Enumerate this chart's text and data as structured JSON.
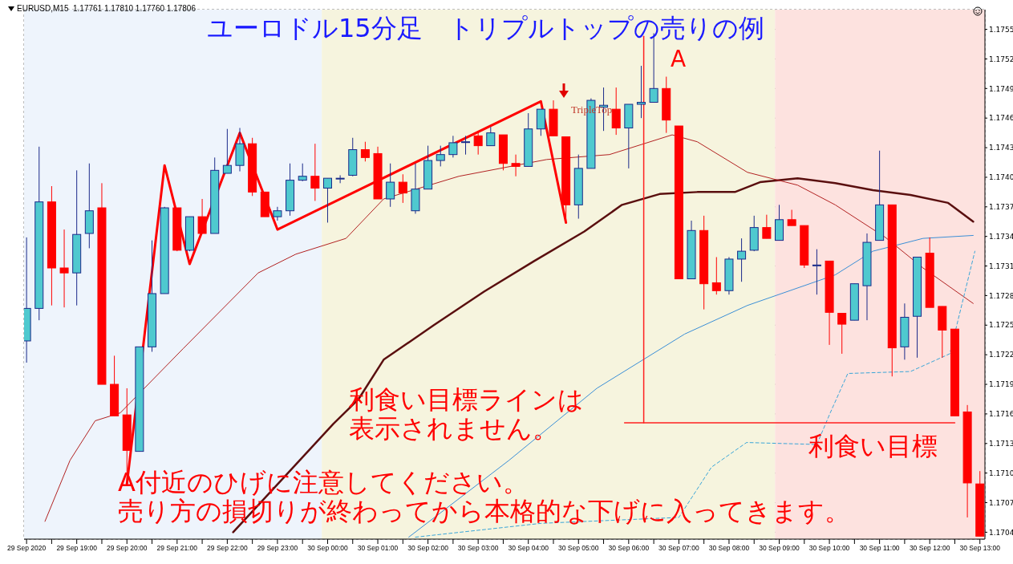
{
  "chart_data": {
    "type": "candlestick",
    "title": "ユーロドル15分足　トリプルトップの売りの例",
    "subtitle": "EURUSD,M15  1.17761 1.17810 1.17760 1.17806",
    "x": [
      "2020-09-29T18:00",
      "2020-09-29T18:15",
      "2020-09-29T18:30",
      "2020-09-29T18:45",
      "2020-09-29T19:00",
      "2020-09-29T19:15",
      "2020-09-29T19:30",
      "2020-09-29T19:45",
      "2020-09-29T20:00",
      "2020-09-29T20:15",
      "2020-09-29T20:30",
      "2020-09-29T20:45",
      "2020-09-29T21:00",
      "2020-09-29T21:15",
      "2020-09-29T21:30",
      "2020-09-29T21:45",
      "2020-09-29T22:00",
      "2020-09-29T22:15",
      "2020-09-29T22:30",
      "2020-09-29T22:45",
      "2020-09-29T23:00",
      "2020-09-29T23:15",
      "2020-09-29T23:30",
      "2020-09-29T23:45",
      "2020-09-30T00:00",
      "2020-09-30T00:15",
      "2020-09-30T00:30",
      "2020-09-30T00:45",
      "2020-09-30T01:00",
      "2020-09-30T01:15",
      "2020-09-30T01:30",
      "2020-09-30T01:45",
      "2020-09-30T02:00",
      "2020-09-30T02:15",
      "2020-09-30T02:30",
      "2020-09-30T02:45",
      "2020-09-30T03:00",
      "2020-09-30T03:15",
      "2020-09-30T03:30",
      "2020-09-30T03:45",
      "2020-09-30T04:00",
      "2020-09-30T04:15",
      "2020-09-30T04:30",
      "2020-09-30T04:45",
      "2020-09-30T05:00",
      "2020-09-30T05:15",
      "2020-09-30T05:30",
      "2020-09-30T05:45",
      "2020-09-30T06:00",
      "2020-09-30T06:15",
      "2020-09-30T06:30",
      "2020-09-30T06:45",
      "2020-09-30T07:00",
      "2020-09-30T07:15",
      "2020-09-30T07:30",
      "2020-09-30T07:45",
      "2020-09-30T08:00",
      "2020-09-30T08:15",
      "2020-09-30T08:30",
      "2020-09-30T08:45",
      "2020-09-30T09:00",
      "2020-09-30T09:15",
      "2020-09-30T09:30",
      "2020-09-30T09:45",
      "2020-09-30T10:00",
      "2020-09-30T10:15",
      "2020-09-30T10:30",
      "2020-09-30T10:45",
      "2020-09-30T11:00",
      "2020-09-30T11:15",
      "2020-09-30T11:30",
      "2020-09-30T11:45",
      "2020-09-30T12:00",
      "2020-09-30T12:15",
      "2020-09-30T12:30",
      "2020-09-30T12:45",
      "2020-09-30T13:00"
    ],
    "ohlc": [
      [
        1.17234,
        1.17339,
        1.17212,
        1.17267
      ],
      [
        1.17267,
        1.17431,
        1.17255,
        1.17375
      ],
      [
        1.17375,
        1.17391,
        1.1727,
        1.17308
      ],
      [
        1.17308,
        1.17347,
        1.17268,
        1.17303
      ],
      [
        1.17303,
        1.17407,
        1.1727,
        1.17342
      ],
      [
        1.17343,
        1.17414,
        1.17328,
        1.17366
      ],
      [
        1.17369,
        1.17394,
        1.1719,
        1.1719
      ],
      [
        1.1719,
        1.17219,
        1.17158,
        1.17158
      ],
      [
        1.17159,
        1.17186,
        1.17089,
        1.17123
      ],
      [
        1.17122,
        1.17228,
        1.17122,
        1.17228
      ],
      [
        1.17228,
        1.17336,
        1.17223,
        1.17282
      ],
      [
        1.17282,
        1.1737,
        1.17282,
        1.17369
      ],
      [
        1.17369,
        1.17369,
        1.17325,
        1.17326
      ],
      [
        1.17326,
        1.1736,
        1.17325,
        1.1736
      ],
      [
        1.1736,
        1.17378,
        1.17343,
        1.17343
      ],
      [
        1.17343,
        1.1742,
        1.17343,
        1.17407
      ],
      [
        1.17404,
        1.17449,
        1.17404,
        1.17412
      ],
      [
        1.17412,
        1.1745,
        1.17406,
        1.17434
      ],
      [
        1.17434,
        1.1744,
        1.17381,
        1.17385
      ],
      [
        1.17385,
        1.17385,
        1.1736,
        1.1736
      ],
      [
        1.1736,
        1.1737,
        1.17356,
        1.17366
      ],
      [
        1.17366,
        1.17414,
        1.17361,
        1.17397
      ],
      [
        1.17397,
        1.17414,
        1.17396,
        1.17401
      ],
      [
        1.17401,
        1.17434,
        1.17376,
        1.17389
      ],
      [
        1.17389,
        1.17399,
        1.17354,
        1.17399
      ],
      [
        1.17399,
        1.17402,
        1.17394,
        1.17399
      ],
      [
        1.17402,
        1.1744,
        1.17401,
        1.17428
      ],
      [
        1.17428,
        1.17436,
        1.17416,
        1.1742
      ],
      [
        1.17424,
        1.17431,
        1.17378,
        1.17378
      ],
      [
        1.17378,
        1.17414,
        1.1737,
        1.17395
      ],
      [
        1.17395,
        1.17403,
        1.17374,
        1.17384
      ],
      [
        1.17366,
        1.17414,
        1.17363,
        1.17388
      ],
      [
        1.17388,
        1.17432,
        1.17388,
        1.17417
      ],
      [
        1.17417,
        1.17432,
        1.17411,
        1.17423
      ],
      [
        1.17423,
        1.17442,
        1.1742,
        1.17435
      ],
      [
        1.17436,
        1.17442,
        1.17423,
        1.17436
      ],
      [
        1.17442,
        1.17447,
        1.17423,
        1.17432
      ],
      [
        1.17432,
        1.17451,
        1.17432,
        1.17445
      ],
      [
        1.17443,
        1.17443,
        1.17407,
        1.17414
      ],
      [
        1.17414,
        1.17423,
        1.17401,
        1.17411
      ],
      [
        1.17411,
        1.17465,
        1.17411,
        1.17449
      ],
      [
        1.17449,
        1.17469,
        1.17442,
        1.17469
      ],
      [
        1.17469,
        1.17478,
        1.17442,
        1.17442
      ],
      [
        1.17441,
        1.17441,
        1.17356,
        1.17372
      ],
      [
        1.17372,
        1.17423,
        1.17358,
        1.17409
      ],
      [
        1.17409,
        1.1748,
        1.17409,
        1.17478
      ],
      [
        1.17471,
        1.17491,
        1.17447,
        1.17473
      ],
      [
        1.17469,
        1.17491,
        1.17443,
        1.1745
      ],
      [
        1.1745,
        1.17474,
        1.17409,
        1.17474
      ],
      [
        1.17474,
        1.17513,
        1.1746,
        1.17476
      ],
      [
        1.17476,
        1.17546,
        1.17476,
        1.1749
      ],
      [
        1.1749,
        1.17502,
        1.17445,
        1.17458
      ],
      [
        1.17452,
        1.17452,
        1.17297,
        1.17297
      ],
      [
        1.17297,
        1.17356,
        1.17297,
        1.17346
      ],
      [
        1.17346,
        1.17361,
        1.17266,
        1.17292
      ],
      [
        1.17293,
        1.17319,
        1.17281,
        1.17285
      ],
      [
        1.17285,
        1.17319,
        1.17281,
        1.17317
      ],
      [
        1.17317,
        1.17338,
        1.17294,
        1.17325
      ],
      [
        1.17326,
        1.17361,
        1.17325,
        1.17349
      ],
      [
        1.17349,
        1.17362,
        1.17338,
        1.17338
      ],
      [
        1.17336,
        1.17372,
        1.17336,
        1.17357
      ],
      [
        1.17357,
        1.17367,
        1.17351,
        1.17351
      ],
      [
        1.17351,
        1.17351,
        1.17308,
        1.17311
      ],
      [
        1.17311,
        1.17327,
        1.17281,
        1.17311
      ],
      [
        1.17315,
        1.17315,
        1.1723,
        1.17263
      ],
      [
        1.17262,
        1.17262,
        1.17221,
        1.17251
      ],
      [
        1.17255,
        1.17292,
        1.17255,
        1.17292
      ],
      [
        1.1729,
        1.17343,
        1.17255,
        1.17334
      ],
      [
        1.17336,
        1.17427,
        1.17336,
        1.17372
      ],
      [
        1.17372,
        1.17372,
        1.17198,
        1.17227
      ],
      [
        1.17228,
        1.17272,
        1.17215,
        1.17258
      ],
      [
        1.17259,
        1.17319,
        1.17217,
        1.17319
      ],
      [
        1.17323,
        1.17339,
        1.17268,
        1.17268
      ],
      [
        1.17269,
        1.17269,
        1.17217,
        1.17245
      ],
      [
        1.17246,
        1.17246,
        1.17158,
        1.17158
      ],
      [
        1.17162,
        1.17169,
        1.17055,
        1.1709
      ],
      [
        1.17089,
        1.17102,
        1.17036,
        1.17036
      ]
    ],
    "colors": [
      "#4fc9cf",
      "#4fc9cf",
      "#ff0000",
      "#ff0000",
      "#4fc9cf",
      "#4fc9cf",
      "#ff0000",
      "#ff0000",
      "#ff0000",
      "#4fc9cf",
      "#4fc9cf",
      "#4fc9cf",
      "#ff0000",
      "#4fc9cf",
      "#ff0000",
      "#4fc9cf",
      "#4fc9cf",
      "#4fc9cf",
      "#ff0000",
      "#ff0000",
      "#4fc9cf",
      "#4fc9cf",
      "#4fc9cf",
      "#ff0000",
      "#4fc9cf",
      "#4fc9cf",
      "#4fc9cf",
      "#ff0000",
      "#ff0000",
      "#4fc9cf",
      "#ff0000",
      "#4fc9cf",
      "#4fc9cf",
      "#4fc9cf",
      "#4fc9cf",
      "#4fc9cf",
      "#ff0000",
      "#4fc9cf",
      "#ff0000",
      "#ff0000",
      "#4fc9cf",
      "#4fc9cf",
      "#ff0000",
      "#ff0000",
      "#4fc9cf",
      "#4fc9cf",
      "#4fc9cf",
      "#ff0000",
      "#4fc9cf",
      "#4fc9cf",
      "#4fc9cf",
      "#ff0000",
      "#ff0000",
      "#4fc9cf",
      "#ff0000",
      "#ff0000",
      "#4fc9cf",
      "#4fc9cf",
      "#4fc9cf",
      "#ff0000",
      "#4fc9cf",
      "#ff0000",
      "#ff0000",
      "#4fc9cf",
      "#ff0000",
      "#ff0000",
      "#4fc9cf",
      "#4fc9cf",
      "#4fc9cf",
      "#ff0000",
      "#4fc9cf",
      "#4fc9cf",
      "#ff0000",
      "#ff0000",
      "#ff0000",
      "#ff0000",
      "#ff0000"
    ],
    "xlim": [
      "2020-09-29T17:57",
      "2020-09-30T13:06"
    ],
    "xticks": [
      {
        "value": "2020-09-29T18:00",
        "label": "29 Sep 2020"
      },
      {
        "value": "2020-09-29T18:30",
        "label": null
      },
      {
        "value": "2020-09-29T19:00",
        "label": "29 Sep 19:00"
      },
      {
        "value": "2020-09-29T19:30",
        "label": null
      },
      {
        "value": "2020-09-29T20:00",
        "label": "29 Sep 20:00"
      },
      {
        "value": "2020-09-29T20:30",
        "label": null
      },
      {
        "value": "2020-09-29T21:00",
        "label": "29 Sep 21:00"
      },
      {
        "value": "2020-09-29T21:30",
        "label": null
      },
      {
        "value": "2020-09-29T22:00",
        "label": "29 Sep 22:00"
      },
      {
        "value": "2020-09-29T22:30",
        "label": null
      },
      {
        "value": "2020-09-29T23:00",
        "label": "29 Sep 23:00"
      },
      {
        "value": "2020-09-29T23:30",
        "label": null
      },
      {
        "value": "2020-09-30T00:00",
        "label": "30 Sep 00:00"
      },
      {
        "value": "2020-09-30T00:30",
        "label": null
      },
      {
        "value": "2020-09-30T01:00",
        "label": "30 Sep 01:00"
      },
      {
        "value": "2020-09-30T01:30",
        "label": null
      },
      {
        "value": "2020-09-30T02:00",
        "label": "30 Sep 02:00"
      },
      {
        "value": "2020-09-30T02:30",
        "label": null
      },
      {
        "value": "2020-09-30T03:00",
        "label": "30 Sep 03:00"
      },
      {
        "value": "2020-09-30T03:30",
        "label": null
      },
      {
        "value": "2020-09-30T04:00",
        "label": "30 Sep 04:00"
      },
      {
        "value": "2020-09-30T04:30",
        "label": null
      },
      {
        "value": "2020-09-30T05:00",
        "label": "30 Sep 05:00"
      },
      {
        "value": "2020-09-30T05:30",
        "label": null
      },
      {
        "value": "2020-09-30T06:00",
        "label": "30 Sep 06:00"
      },
      {
        "value": "2020-09-30T06:30",
        "label": null
      },
      {
        "value": "2020-09-30T07:00",
        "label": "30 Sep 07:00"
      },
      {
        "value": "2020-09-30T07:30",
        "label": null
      },
      {
        "value": "2020-09-30T08:00",
        "label": "30 Sep 08:00"
      },
      {
        "value": "2020-09-30T08:30",
        "label": null
      },
      {
        "value": "2020-09-30T09:00",
        "label": "30 Sep 09:00"
      },
      {
        "value": "2020-09-30T09:30",
        "label": null
      },
      {
        "value": "2020-09-30T10:00",
        "label": "30 Sep 10:00"
      },
      {
        "value": "2020-09-30T10:30",
        "label": null
      },
      {
        "value": "2020-09-30T11:00",
        "label": "30 Sep 11:00"
      },
      {
        "value": "2020-09-30T11:30",
        "label": null
      },
      {
        "value": "2020-09-30T12:00",
        "label": "30 Sep 12:00"
      },
      {
        "value": "2020-09-30T12:30",
        "label": null
      },
      {
        "value": "2020-09-30T13:00",
        "label": "30 Sep 13:00"
      }
    ],
    "ylim": [
      1.17033,
      1.1757
    ],
    "yticks": [
      1.1755,
      1.1752,
      1.1749,
      1.1746,
      1.1743,
      {
        "value": 1.174,
        "label": "1.1740"
      },
      1.1737,
      1.1734,
      1.1731,
      1.1728,
      1.1725,
      1.1722,
      1.1719,
      1.1716,
      1.1713,
      {
        "value": 1.171,
        "label": "1.1710"
      },
      1.1707,
      1.1704
    ],
    "grid": true,
    "bands": [
      {
        "axis": "x",
        "from": "2020-09-29T17:57",
        "to": "2020-09-29T23:53",
        "color": "#eef4fc"
      },
      {
        "axis": "x",
        "from": "2020-09-29T23:53",
        "to": "2020-09-30T08:55",
        "color": "#f6f4de"
      },
      {
        "axis": "x",
        "from": "2020-09-30T08:55",
        "to": "2020-09-30T13:06",
        "color": "#fde2df"
      }
    ],
    "series": [
      {
        "type": "line",
        "color": "#5a0f0f",
        "x": [
          "2020-09-29T22:07",
          "2020-09-29T23:07",
          "2020-09-30T00:07",
          "2020-09-30T00:37",
          "2020-09-30T01:07",
          "2020-09-30T02:07",
          "2020-09-30T03:07",
          "2020-09-30T04:07",
          "2020-09-30T05:07",
          "2020-09-30T05:52",
          "2020-09-30T06:37",
          "2020-09-30T07:22",
          "2020-09-30T08:07",
          "2020-09-30T08:37",
          "2020-09-30T09:22",
          "2020-09-30T10:07",
          "2020-09-30T10:52",
          "2020-09-30T11:37",
          "2020-09-30T12:22",
          "2020-09-30T12:52"
        ],
        "values": [
          1.1704,
          1.17095,
          1.1715,
          1.17175,
          1.17215,
          1.1725,
          1.17284,
          1.17315,
          1.17345,
          1.17372,
          1.17383,
          1.17385,
          1.17385,
          1.17395,
          1.17399,
          1.17394,
          1.17387,
          1.17382,
          1.17374,
          1.17355
        ]
      },
      {
        "type": "line",
        "color": "#b22222",
        "x": [
          "2020-09-29T18:22",
          "2020-09-29T18:52",
          "2020-09-29T19:22",
          "2020-09-29T19:52",
          "2020-09-29T21:07",
          "2020-09-29T22:37",
          "2020-09-29T23:22",
          "2020-09-30T00:22",
          "2020-09-30T01:07",
          "2020-09-30T02:37",
          "2020-09-30T04:22",
          "2020-09-30T05:37",
          "2020-09-30T06:52",
          "2020-09-30T07:22",
          "2020-09-30T08:22",
          "2020-09-30T09:22",
          "2020-09-30T10:07",
          "2020-09-30T11:07",
          "2020-09-30T11:52",
          "2020-09-30T12:52"
        ],
        "values": [
          1.17051,
          1.17113,
          1.17153,
          1.17161,
          1.17226,
          1.17303,
          1.17322,
          1.17338,
          1.17378,
          1.17401,
          1.17418,
          1.17423,
          1.17443,
          1.17436,
          1.17405,
          1.17392,
          1.17372,
          1.17339,
          1.17308,
          1.17272
        ]
      },
      {
        "type": "line",
        "color": "#3b8fd6",
        "x": [
          "2020-09-30T01:37",
          "2020-09-30T03:37",
          "2020-09-30T05:22",
          "2020-09-30T07:07",
          "2020-09-30T08:22",
          "2020-09-30T10:07",
          "2020-09-30T10:52",
          "2020-09-30T11:52",
          "2020-09-30T12:52"
        ],
        "values": [
          1.17035,
          1.17113,
          1.17186,
          1.17241,
          1.1727,
          1.17301,
          1.17325,
          1.17338,
          1.17341
        ]
      },
      {
        "type": "line",
        "color": "#3aa6d8",
        "line_style": "dashed",
        "x": [
          "2020-09-30T01:45",
          "2020-09-30T04:15",
          "2020-09-30T07:00",
          "2020-09-30T07:39",
          "2020-09-30T08:21",
          "2020-09-30T09:45",
          "2020-09-30T10:01",
          "2020-09-30T10:22",
          "2020-09-30T11:37",
          "2020-09-30T12:24",
          "2020-09-30T12:54"
        ],
        "values": [
          1.17035,
          1.17049,
          1.17055,
          1.17106,
          1.17131,
          1.17129,
          1.17161,
          1.17201,
          1.17203,
          1.17221,
          1.17325
        ]
      },
      {
        "type": "line",
        "color": "#ff0000",
        "x": [
          "2020-09-29T20:00",
          "2020-09-29T20:45",
          "2020-09-29T21:15",
          "2020-09-29T22:15",
          "2020-09-29T23:00",
          "2020-09-30T04:15",
          "2020-09-30T04:45"
        ],
        "values": [
          1.17089,
          1.17412,
          1.17312,
          1.17445,
          1.17347,
          1.17477,
          1.17354
        ]
      },
      {
        "type": "line",
        "color": "#ff2020",
        "x": [
          "2020-09-30T05:55",
          "2020-09-30T12:30"
        ],
        "values": [
          1.17151,
          1.17151
        ]
      },
      {
        "type": "line",
        "color": "#ff2020",
        "x": [
          "2020-09-30T06:18",
          "2020-09-30T06:18"
        ],
        "values": [
          1.17543,
          1.17151
        ]
      }
    ],
    "annotations": [
      "A",
      "TripleTop",
      "利食い目標ラインは表示されません。",
      "利食い目標",
      "A付近のひげに注意してください。売り方の損切りが終わってから本格的な下げに入ってきます。"
    ]
  }
}
